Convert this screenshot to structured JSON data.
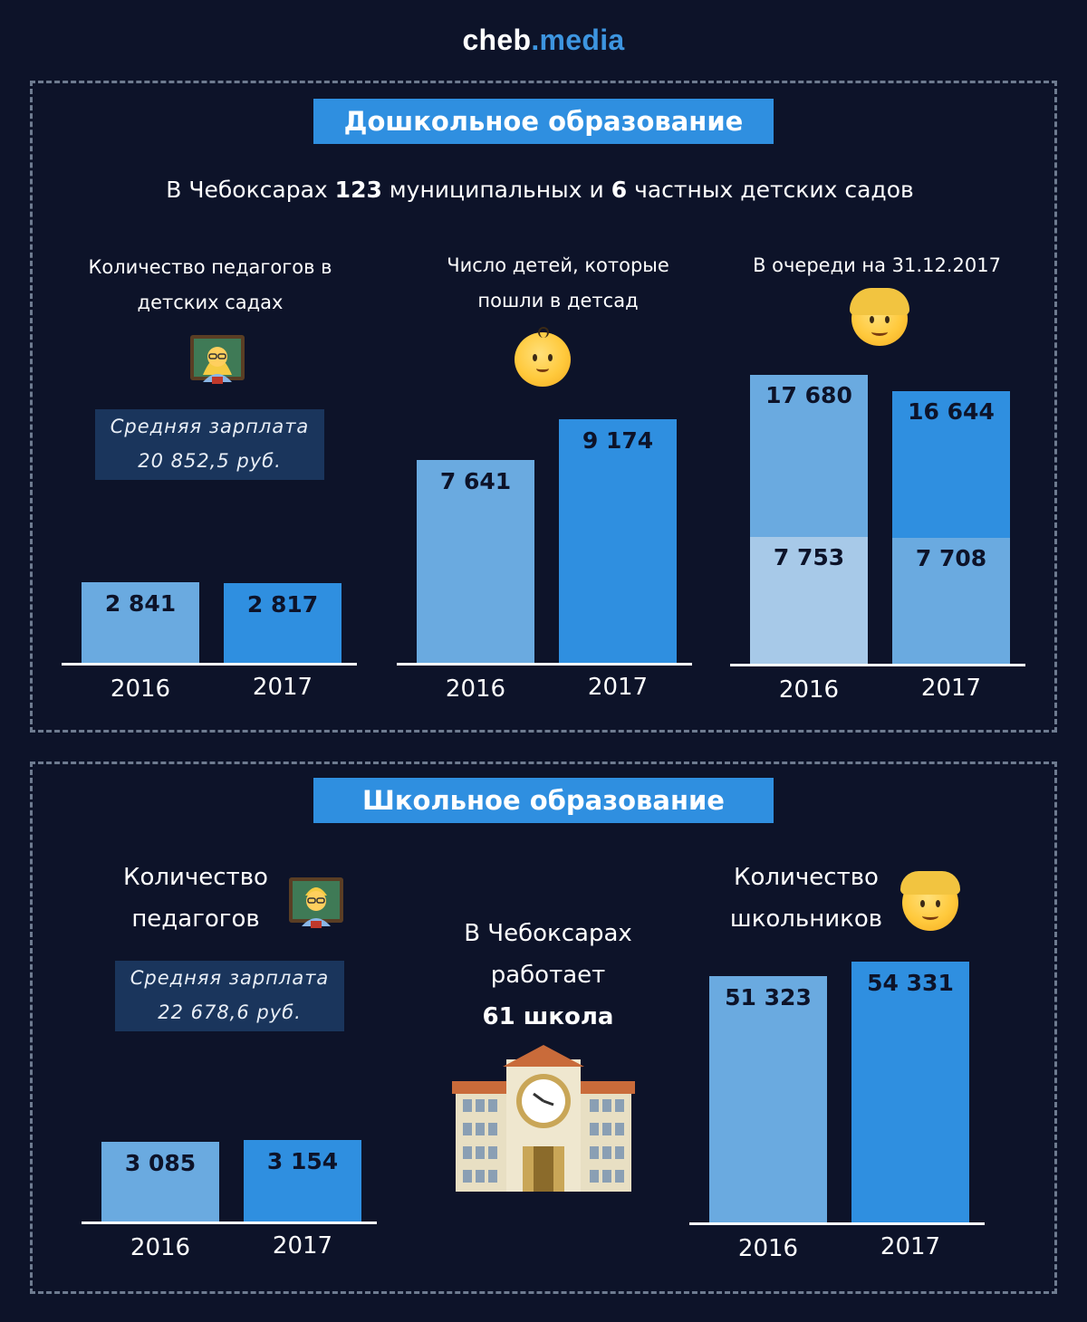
{
  "brand": {
    "name_part1": "cheb",
    "name_part2": ".media"
  },
  "preschool": {
    "title": "Дошкольное образование",
    "intro": {
      "pre": "В Чебоксарах ",
      "municipal": "123",
      "mid": " муниципальных и ",
      "private": "6",
      "post": " частных детских садов"
    },
    "teachers": {
      "caption_line1": "Количество педагогов в",
      "caption_line2": "детских садах",
      "salary_line1": "Средняя зарплата",
      "salary_line2": "20 852,5 руб.",
      "icon": "woman-teacher-icon"
    },
    "children": {
      "caption_line1": "Число детей, которые",
      "caption_line2": "пошли в детсад",
      "icon": "baby-face-icon"
    },
    "queue": {
      "caption_line1": "В очереди на 31.12.2017",
      "icon": "child-face-icon"
    }
  },
  "school": {
    "title": "Школьное образование",
    "teachers": {
      "caption_line1": "Количество",
      "caption_line2": "педагогов",
      "salary_line1": "Средняя зарплата",
      "salary_line2": "22 678,6 руб.",
      "icon": "man-teacher-icon"
    },
    "schools": {
      "line1": "В Чебоксарах",
      "line2": "работает",
      "line3": "61 школа",
      "icon": "school-building-icon"
    },
    "students": {
      "caption_line1": "Количество",
      "caption_line2": "школьников",
      "icon": "boy-face-icon"
    }
  },
  "colors": {
    "background": "#0d1329",
    "banner": "#2f8fe0",
    "bar_2016": "#6aaae0",
    "bar_2017": "#2f8fe0",
    "bar_stack_low_2016": "#a7c9e8",
    "salary_box": "#1a355c"
  },
  "chart_data": [
    {
      "type": "bar",
      "id": "preschool_teachers",
      "title": "Количество педагогов в детских садах",
      "categories": [
        "2016",
        "2017"
      ],
      "values": [
        2841,
        2817
      ],
      "value_labels": [
        "2 841",
        "2 817"
      ]
    },
    {
      "type": "bar",
      "id": "preschool_children",
      "title": "Число детей, которые пошли в детсад",
      "categories": [
        "2016",
        "2017"
      ],
      "values": [
        7641,
        9174
      ],
      "value_labels": [
        "7 641",
        "9 174"
      ]
    },
    {
      "type": "bar",
      "id": "preschool_queue",
      "title": "В очереди на 31.12.2017",
      "stacked": true,
      "categories": [
        "2016",
        "2017"
      ],
      "totals": [
        17680,
        16644
      ],
      "total_labels": [
        "17 680",
        "16 644"
      ],
      "sub_values": [
        7753,
        7708
      ],
      "sub_labels": [
        "7 753",
        "7 708"
      ]
    },
    {
      "type": "bar",
      "id": "school_teachers",
      "title": "Количество педагогов",
      "categories": [
        "2016",
        "2017"
      ],
      "values": [
        3085,
        3154
      ],
      "value_labels": [
        "3 085",
        "3 154"
      ]
    },
    {
      "type": "bar",
      "id": "school_students",
      "title": "Количество школьников",
      "categories": [
        "2016",
        "2017"
      ],
      "values": [
        51323,
        54331
      ],
      "value_labels": [
        "51 323",
        "54 331"
      ]
    }
  ]
}
